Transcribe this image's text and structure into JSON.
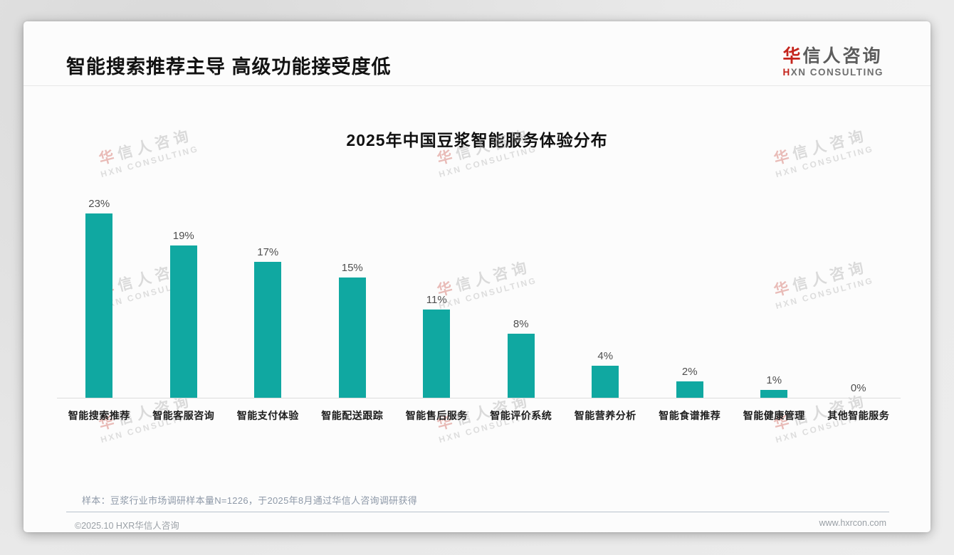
{
  "page": {
    "header": {
      "title": "智能搜索推荐主导 高级功能接受度低"
    },
    "logo": {
      "cn_first": "华",
      "cn_rest": "信人咨询",
      "en_first": "H",
      "en_rest": "XN CONSULTING"
    },
    "watermark": {
      "cn_first": "华",
      "cn_rest": "信人咨询",
      "en": "HXN CONSULTING"
    },
    "footer": {
      "note": "样本：豆浆行业市场调研样本量N=1226，于2025年8月通过华信人咨询调研获得",
      "copyright": "©2025.10 HXR华信人咨询",
      "website": "www.hxrcon.com"
    }
  },
  "chart_data": {
    "type": "bar",
    "title": "2025年中国豆浆智能服务体验分布",
    "categories": [
      "智能搜索推荐",
      "智能客服咨询",
      "智能支付体验",
      "智能配送跟踪",
      "智能售后服务",
      "智能评价系统",
      "智能营养分析",
      "智能食谱推荐",
      "智能健康管理",
      "其他智能服务"
    ],
    "values": [
      23,
      19,
      17,
      15,
      11,
      8,
      4,
      2,
      1,
      0
    ],
    "unit": "%",
    "value_label_position": "above-bar",
    "bar_color": "#10a8a1",
    "xlabel": "",
    "ylabel": "",
    "ylim": [
      0,
      25
    ],
    "grid": false,
    "legend": "none"
  },
  "colors": {
    "bar_teal": "#10a8a1",
    "brand_red": "#c4241c",
    "note_gray": "#8e99a8"
  }
}
